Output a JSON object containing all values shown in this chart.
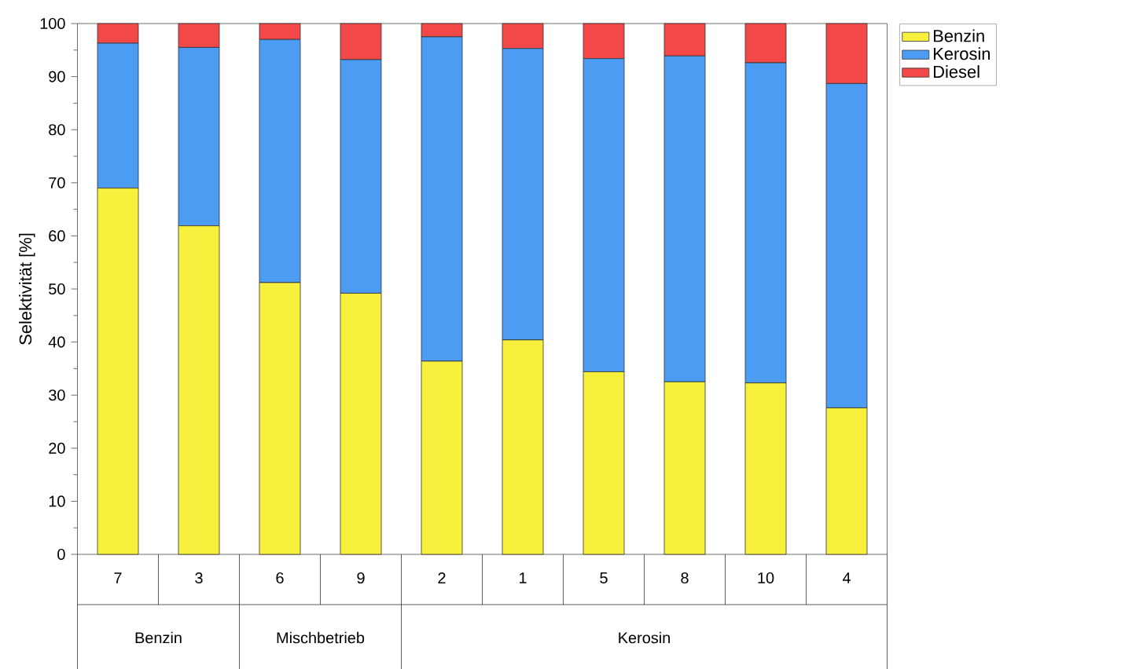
{
  "chart_data": {
    "type": "bar",
    "stacked": true,
    "ylabel": "Selektivität [%]",
    "categories": [
      "7",
      "3",
      "6",
      "9",
      "2",
      "1",
      "5",
      "8",
      "10",
      "4"
    ],
    "series": [
      {
        "name": "Benzin",
        "color": "#f7f03c",
        "values": [
          69.0,
          61.9,
          51.2,
          49.2,
          36.4,
          40.4,
          34.4,
          32.5,
          32.3,
          27.6
        ]
      },
      {
        "name": "Kerosin",
        "color": "#4b9cf2",
        "values": [
          27.3,
          33.6,
          45.8,
          44.0,
          61.1,
          54.9,
          59.0,
          61.4,
          60.3,
          61.1
        ]
      },
      {
        "name": "Diesel",
        "color": "#f24848",
        "values": [
          3.7,
          4.5,
          3.0,
          6.8,
          2.5,
          4.7,
          6.6,
          6.1,
          7.4,
          11.3
        ]
      }
    ],
    "ylim": [
      0,
      100
    ],
    "yticks": [
      0,
      10,
      20,
      30,
      40,
      50,
      60,
      70,
      80,
      90,
      100
    ],
    "legend": "top right",
    "annotations": [
      "Benzin",
      "Mischbetrieb",
      "Kerosin"
    ]
  }
}
